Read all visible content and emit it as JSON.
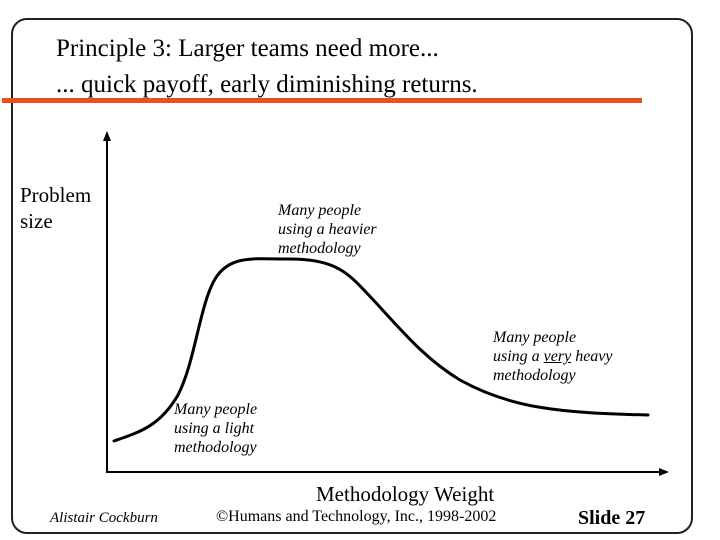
{
  "slide": {
    "title_line1": "Principle 3: Larger teams need more...",
    "title_line2": "... quick payoff, early diminishing returns.",
    "accent_color": "#e8501e"
  },
  "axes": {
    "y_label_line1": "Problem",
    "y_label_line2": "size",
    "x_label": "Methodology Weight"
  },
  "annotations": {
    "heavier": [
      "Many people",
      "using a heavier",
      "methodology"
    ],
    "very_heavy": {
      "line1": "Many people",
      "line2_pre": "using a ",
      "line2_underlined": "very",
      "line2_post": " heavy",
      "line3": "methodology"
    },
    "light": [
      "Many people",
      "using a light",
      "methodology"
    ]
  },
  "footer": {
    "author": "Alistair Cockburn",
    "copyright": "©Humans and Technology, Inc., 1998-2002",
    "slide_number": "Slide 27"
  }
}
